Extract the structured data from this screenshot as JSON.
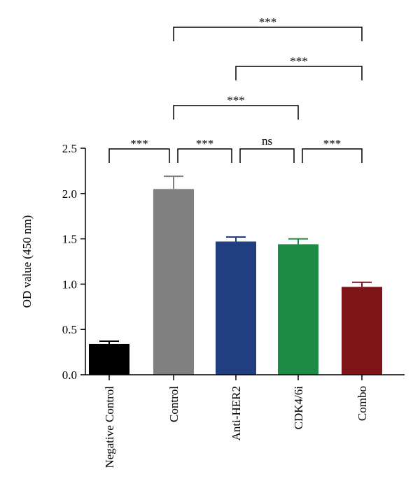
{
  "chart_data": {
    "type": "bar",
    "title": "",
    "xlabel": "",
    "ylabel": "OD value (450 nm)",
    "ylim": [
      0,
      2.5
    ],
    "yticks": [
      "0.0",
      "0.5",
      "1.0",
      "1.5",
      "2.0",
      "2.5"
    ],
    "grid": false,
    "categories": [
      "Negative Control",
      "Control",
      "Anti-HER2",
      "CDK4/6i",
      "Combo"
    ],
    "values": [
      0.34,
      2.05,
      1.47,
      1.44,
      0.97
    ],
    "error_upper": [
      0.03,
      0.14,
      0.05,
      0.06,
      0.05
    ],
    "colors": [
      "#000000",
      "#808080",
      "#213f80",
      "#1d8a45",
      "#7f1418"
    ],
    "comparisons": [
      {
        "from": 0,
        "to": 1,
        "label": "***",
        "level": 0
      },
      {
        "from": 1,
        "to": 2,
        "label": "***",
        "level": 0
      },
      {
        "from": 2,
        "to": 3,
        "label": "ns",
        "level": 0
      },
      {
        "from": 3,
        "to": 4,
        "label": "***",
        "level": 0
      },
      {
        "from": 1,
        "to": 3,
        "label": "***",
        "level": 1
      },
      {
        "from": 2,
        "to": 4,
        "label": "***",
        "level": 2
      },
      {
        "from": 1,
        "to": 4,
        "label": "***",
        "level": 3
      }
    ]
  }
}
